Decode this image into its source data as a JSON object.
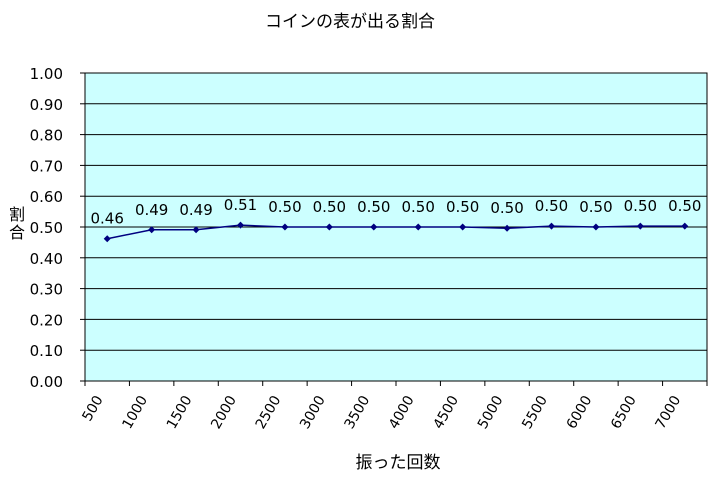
{
  "chart_data": {
    "type": "line",
    "title": "コインの表が出る割合",
    "xlabel": "振った回数",
    "ylabel": "割合",
    "categories": [
      "500",
      "1000",
      "1500",
      "2000",
      "2500",
      "3000",
      "3500",
      "4000",
      "4500",
      "5000",
      "5500",
      "6000",
      "6500",
      "7000"
    ],
    "series": [
      {
        "values": [
          0.462,
          0.491,
          0.491,
          0.506,
          0.5,
          0.5,
          0.5,
          0.5,
          0.5,
          0.496,
          0.503,
          0.5,
          0.503,
          0.503
        ],
        "labels": [
          "0.46",
          "0.49",
          "0.49",
          "0.51",
          "0.50",
          "0.50",
          "0.50",
          "0.50",
          "0.50",
          "0.50",
          "0.50",
          "0.50",
          "0.50",
          "0.50"
        ]
      }
    ],
    "ylim": [
      0,
      1
    ],
    "yticks": [
      "0.00",
      "0.10",
      "0.20",
      "0.30",
      "0.40",
      "0.50",
      "0.60",
      "0.70",
      "0.80",
      "0.90",
      "1.00"
    ],
    "grid": true,
    "legend": "none",
    "colors": {
      "plot_background": "#ccffff",
      "line": "#000080",
      "grid": "#000000"
    }
  }
}
